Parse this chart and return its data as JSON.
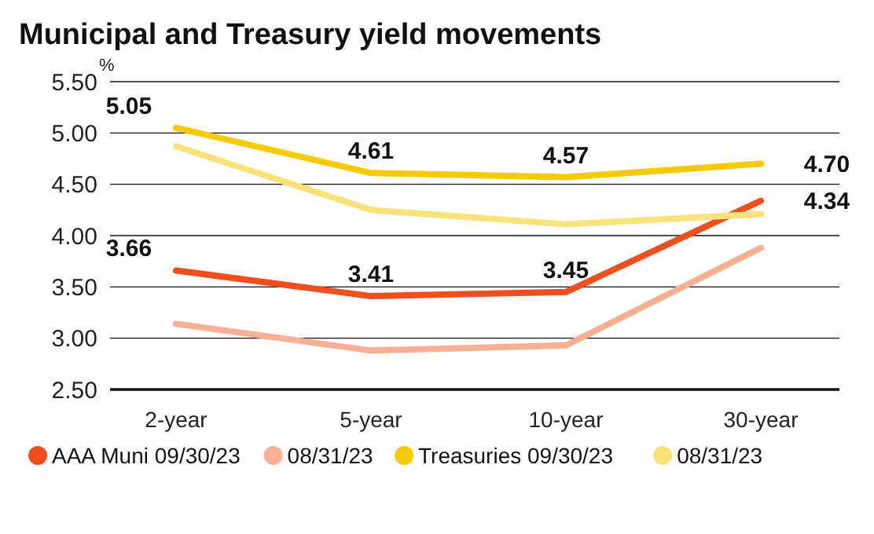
{
  "chart_data": {
    "type": "line",
    "title": "Municipal and Treasury yield movements",
    "ylabel": "%",
    "categories": [
      "2-year",
      "5-year",
      "10-year",
      "30-year"
    ],
    "series": [
      {
        "name": "AAA Muni 09/30/23",
        "color": "#f04e1c",
        "values": [
          3.66,
          3.41,
          3.45,
          4.34
        ],
        "value_labels": [
          "3.66",
          "3.41",
          "3.45",
          "4.34"
        ]
      },
      {
        "name": "08/31/23",
        "color": "#f7b096",
        "values": [
          3.14,
          2.88,
          2.93,
          3.88
        ]
      },
      {
        "name": "Treasuries 09/30/23",
        "color": "#f5cb00",
        "values": [
          5.05,
          4.61,
          4.57,
          4.7
        ],
        "value_labels": [
          "5.05",
          "4.61",
          "4.57",
          "4.70"
        ]
      },
      {
        "name": "08/31/23",
        "color": "#fae27a",
        "values": [
          4.87,
          4.25,
          4.11,
          4.21
        ]
      }
    ],
    "ylim": [
      2.5,
      5.5
    ],
    "yticks": [
      {
        "value": 2.5,
        "label": "2.50"
      },
      {
        "value": 3,
        "label": "3.00"
      },
      {
        "value": 3.5,
        "label": "3.50"
      },
      {
        "value": 4,
        "label": "4.00"
      },
      {
        "value": 4.5,
        "label": "4.50"
      },
      {
        "value": 5,
        "label": "5.00"
      },
      {
        "value": 5.5,
        "label": "5.50"
      }
    ],
    "grid": "y",
    "legend": "bottom",
    "marker": "none",
    "line_style": "solid"
  }
}
